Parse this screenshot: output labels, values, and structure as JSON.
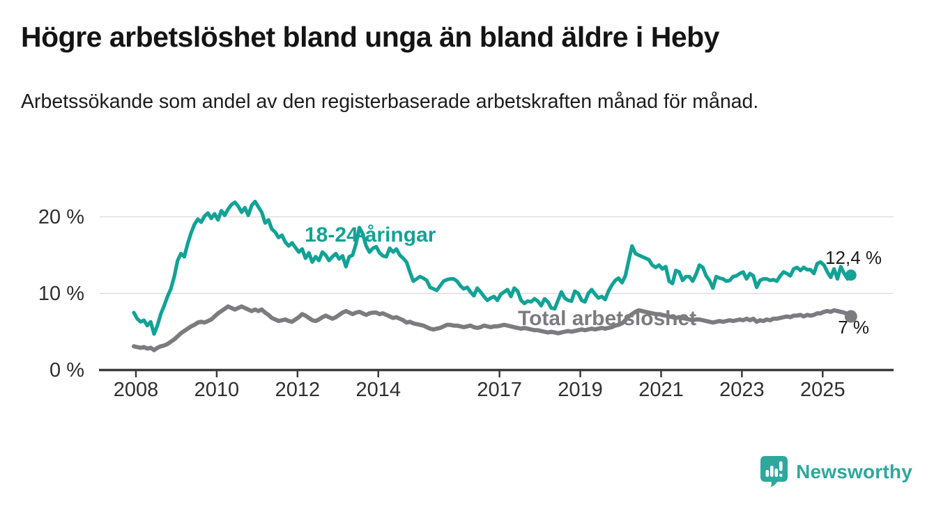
{
  "header": {
    "title": "Högre arbetslöshet bland unga än bland äldre i Heby",
    "subtitle": "Arbetssökande som andel av den registerbaserade arbetskraften månad för månad."
  },
  "chart_data": {
    "type": "line",
    "unit": "%",
    "frequency": "monthly",
    "start_year": 2008,
    "start_month": 1,
    "end_year": 2025,
    "end_month": 10,
    "x_tick_years": [
      2008,
      2010,
      2012,
      2014,
      2017,
      2019,
      2021,
      2023,
      2025
    ],
    "y_ticks": [
      {
        "value": 0,
        "label": "0 %"
      },
      {
        "value": 10,
        "label": "10 %"
      },
      {
        "value": 20,
        "label": "20 %"
      }
    ],
    "ylim": [
      0,
      23
    ],
    "grid": "horizontal",
    "legend_position": "inline-labels",
    "series": [
      {
        "name": "18-24-åringar",
        "color": "#12a296",
        "end_label": "12,4 %",
        "end_value": 12.4,
        "values": [
          7.5,
          6.7,
          6.3,
          6.5,
          5.8,
          6.3,
          4.7,
          5.8,
          7.3,
          8.4,
          9.6,
          10.6,
          12.2,
          14.3,
          15.2,
          14.8,
          16.5,
          17.9,
          19.0,
          19.7,
          19.3,
          20.1,
          20.5,
          19.8,
          20.4,
          19.6,
          20.8,
          20.2,
          21.0,
          21.6,
          21.9,
          21.4,
          20.6,
          21.2,
          20.2,
          21.5,
          22.0,
          21.3,
          20.6,
          19.2,
          19.6,
          18.4,
          18.0,
          17.3,
          17.6,
          16.7,
          16.2,
          16.6,
          16.0,
          15.4,
          15.8,
          14.6,
          15.3,
          14.1,
          14.8,
          14.3,
          15.4,
          15.0,
          14.3,
          14.8,
          15.2,
          14.5,
          14.9,
          13.5,
          14.8,
          15.0,
          16.5,
          18.6,
          17.8,
          16.2,
          15.4,
          15.9,
          16.1,
          15.3,
          14.9,
          14.8,
          15.9,
          15.4,
          15.8,
          15.0,
          14.6,
          14.1,
          12.8,
          11.6,
          11.9,
          12.2,
          12.0,
          11.7,
          10.8,
          10.6,
          10.4,
          11.0,
          11.6,
          11.8,
          11.9,
          11.9,
          11.6,
          11.0,
          10.6,
          10.8,
          10.2,
          9.7,
          10.7,
          10.2,
          9.6,
          9.1,
          9.4,
          9.6,
          9.1,
          9.9,
          10.2,
          10.5,
          9.6,
          10.7,
          10.3,
          9.1,
          8.7,
          9.0,
          8.9,
          9.3,
          9.0,
          8.4,
          9.3,
          8.9,
          8.1,
          8.0,
          9.1,
          10.2,
          9.4,
          9.1,
          9.0,
          10.3,
          10.0,
          9.1,
          8.9,
          10.0,
          10.5,
          9.9,
          9.4,
          9.6,
          9.2,
          10.3,
          11.1,
          11.7,
          12.0,
          11.4,
          12.3,
          14.3,
          16.2,
          15.2,
          15.0,
          14.8,
          14.6,
          14.4,
          13.7,
          13.4,
          13.7,
          13.2,
          13.5,
          11.6,
          11.3,
          13.0,
          12.8,
          11.7,
          12.2,
          12.2,
          11.6,
          12.5,
          13.7,
          13.4,
          12.3,
          11.7,
          10.7,
          12.2,
          12.0,
          11.9,
          11.6,
          11.7,
          12.2,
          12.3,
          12.6,
          12.8,
          11.9,
          12.6,
          12.3,
          10.8,
          11.7,
          11.9,
          11.9,
          11.7,
          11.8,
          11.6,
          12.3,
          12.8,
          12.6,
          12.3,
          13.2,
          13.4,
          13.0,
          13.4,
          13.1,
          13.1,
          12.6,
          13.9,
          14.1,
          13.7,
          12.8,
          12.1,
          13.2,
          11.9,
          13.5,
          12.6,
          11.9,
          12.4
        ]
      },
      {
        "name": "Total arbetslöshet",
        "color": "#7b7b80",
        "end_label": "7 %",
        "end_value": 7.0,
        "values": [
          3.1,
          3.0,
          2.9,
          3.0,
          2.8,
          2.9,
          2.6,
          2.9,
          3.1,
          3.2,
          3.4,
          3.7,
          4.0,
          4.4,
          4.8,
          5.1,
          5.4,
          5.7,
          5.9,
          6.2,
          6.3,
          6.2,
          6.4,
          6.6,
          7.0,
          7.4,
          7.7,
          8.0,
          8.3,
          8.1,
          7.9,
          8.1,
          8.3,
          8.1,
          7.9,
          7.7,
          7.9,
          7.7,
          7.9,
          7.5,
          7.2,
          6.8,
          6.6,
          6.4,
          6.5,
          6.6,
          6.4,
          6.3,
          6.6,
          6.9,
          7.3,
          7.1,
          6.8,
          6.5,
          6.4,
          6.6,
          6.9,
          7.1,
          6.9,
          6.7,
          6.9,
          7.2,
          7.5,
          7.7,
          7.5,
          7.3,
          7.5,
          7.6,
          7.4,
          7.2,
          7.4,
          7.5,
          7.5,
          7.3,
          7.4,
          7.2,
          7.0,
          6.8,
          6.9,
          6.7,
          6.5,
          6.2,
          6.3,
          6.1,
          6.0,
          5.9,
          5.8,
          5.6,
          5.4,
          5.3,
          5.4,
          5.5,
          5.7,
          5.9,
          5.9,
          5.8,
          5.8,
          5.7,
          5.6,
          5.7,
          5.8,
          5.6,
          5.5,
          5.6,
          5.8,
          5.7,
          5.6,
          5.7,
          5.7,
          5.8,
          5.9,
          5.8,
          5.7,
          5.6,
          5.5,
          5.4,
          5.5,
          5.4,
          5.3,
          5.2,
          5.2,
          5.1,
          5.0,
          4.9,
          5.0,
          4.9,
          4.8,
          4.9,
          5.0,
          5.1,
          5.0,
          5.1,
          5.2,
          5.3,
          5.2,
          5.3,
          5.4,
          5.3,
          5.4,
          5.5,
          5.4,
          5.5,
          5.6,
          5.8,
          5.9,
          6.1,
          6.5,
          7.0,
          7.3,
          7.6,
          7.8,
          7.7,
          7.6,
          7.5,
          7.4,
          7.3,
          7.3,
          7.2,
          7.1,
          7.0,
          6.9,
          6.8,
          6.9,
          6.8,
          6.7,
          6.6,
          6.5,
          6.6,
          6.6,
          6.5,
          6.4,
          6.3,
          6.2,
          6.3,
          6.4,
          6.3,
          6.4,
          6.5,
          6.4,
          6.5,
          6.6,
          6.5,
          6.7,
          6.5,
          6.7,
          6.3,
          6.5,
          6.4,
          6.6,
          6.5,
          6.7,
          6.7,
          6.8,
          6.9,
          7.0,
          6.9,
          7.1,
          7.1,
          7.2,
          7.0,
          7.2,
          7.1,
          7.2,
          7.4,
          7.4,
          7.6,
          7.7,
          7.6,
          7.8,
          7.7,
          7.6,
          7.5,
          7.3,
          7.0
        ]
      }
    ]
  },
  "branding": {
    "name": "Newsworthy",
    "color": "#2fa79c"
  }
}
